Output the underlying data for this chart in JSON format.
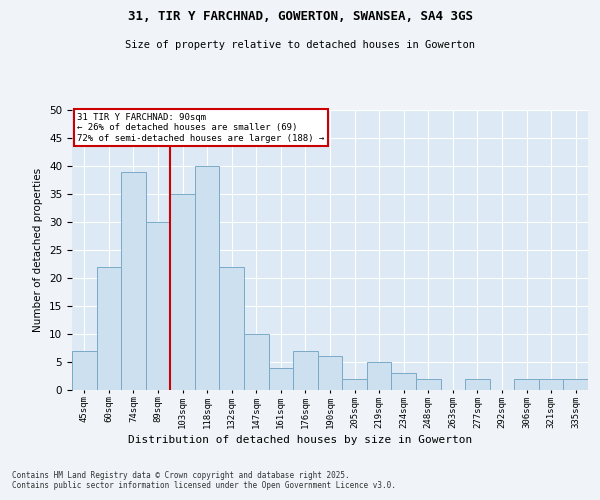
{
  "title": "31, TIR Y FARCHNAD, GOWERTON, SWANSEA, SA4 3GS",
  "subtitle": "Size of property relative to detached houses in Gowerton",
  "xlabel": "Distribution of detached houses by size in Gowerton",
  "ylabel": "Number of detached properties",
  "footer_line1": "Contains HM Land Registry data © Crown copyright and database right 2025.",
  "footer_line2": "Contains public sector information licensed under the Open Government Licence v3.0.",
  "categories": [
    "45sqm",
    "60sqm",
    "74sqm",
    "89sqm",
    "103sqm",
    "118sqm",
    "132sqm",
    "147sqm",
    "161sqm",
    "176sqm",
    "190sqm",
    "205sqm",
    "219sqm",
    "234sqm",
    "248sqm",
    "263sqm",
    "277sqm",
    "292sqm",
    "306sqm",
    "321sqm",
    "335sqm"
  ],
  "values": [
    7,
    22,
    39,
    30,
    35,
    40,
    22,
    10,
    4,
    7,
    6,
    2,
    5,
    3,
    2,
    0,
    2,
    0,
    2,
    2,
    2
  ],
  "bar_color": "#cce0f0",
  "bar_edge_color": "#7aaac8",
  "background_color": "#ddeaf5",
  "ylim": [
    0,
    50
  ],
  "yticks": [
    0,
    5,
    10,
    15,
    20,
    25,
    30,
    35,
    40,
    45,
    50
  ],
  "vline_index": 3.5,
  "annotation_title": "31 TIR Y FARCHNAD: 90sqm",
  "annotation_line1": "← 26% of detached houses are smaller (69)",
  "annotation_line2": "72% of semi-detached houses are larger (188) →",
  "annotation_box_color": "#ffffff",
  "annotation_box_edge": "#cc0000",
  "vline_color": "#cc0000",
  "grid_color": "#ffffff",
  "title_fontsize": 9,
  "subtitle_fontsize": 8
}
